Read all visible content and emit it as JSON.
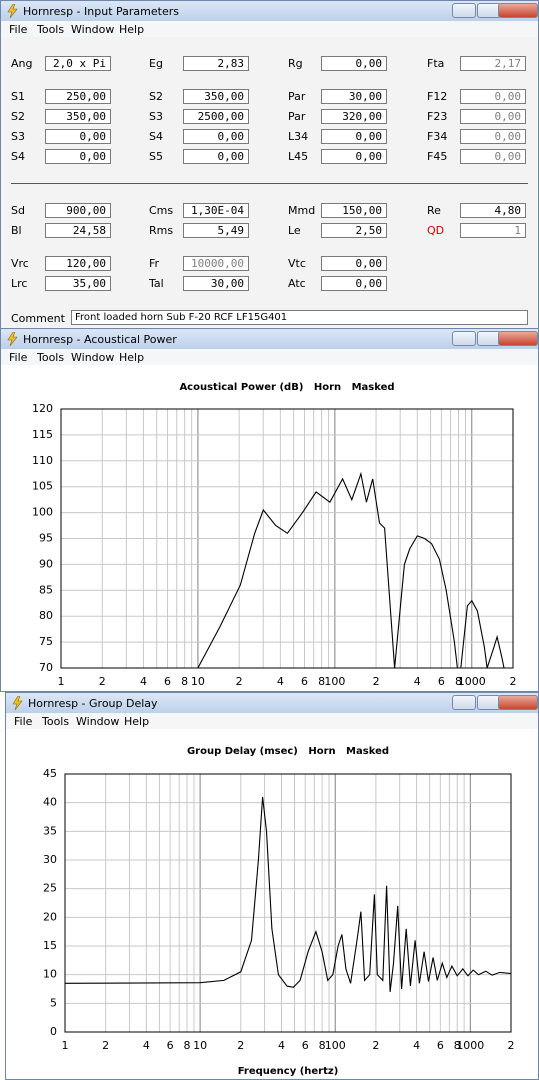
{
  "windows": [
    {
      "title": "Hornresp - Input Parameters",
      "menu": [
        "File",
        "Tools",
        "Window",
        "Help"
      ]
    },
    {
      "title": "Hornresp - Acoustical Power",
      "menu": [
        "File",
        "Tools",
        "Window",
        "Help"
      ]
    },
    {
      "title": "Hornresp - Group Delay",
      "menu": [
        "File",
        "Tools",
        "Window",
        "Help"
      ]
    }
  ],
  "input_parameters": {
    "rows": [
      [
        {
          "label": "Ang",
          "value": "2,0 x Pi"
        },
        {
          "label": "Eg",
          "value": "2,83"
        },
        {
          "label": "Rg",
          "value": "0,00"
        },
        {
          "label": "Fta",
          "value": "2,17"
        }
      ],
      [
        {
          "label": "S1",
          "value": "250,00"
        },
        {
          "label": "S2",
          "value": "350,00"
        },
        {
          "label": "Par",
          "value": "30,00"
        },
        {
          "label": "F12",
          "value": "0,00"
        }
      ],
      [
        {
          "label": "S2",
          "value": "350,00"
        },
        {
          "label": "S3",
          "value": "2500,00"
        },
        {
          "label": "Par",
          "value": "320,00"
        },
        {
          "label": "F23",
          "value": "0,00"
        }
      ],
      [
        {
          "label": "S3",
          "value": "0,00"
        },
        {
          "label": "S4",
          "value": "0,00"
        },
        {
          "label": "L34",
          "value": "0,00"
        },
        {
          "label": "F34",
          "value": "0,00"
        }
      ],
      [
        {
          "label": "S4",
          "value": "0,00"
        },
        {
          "label": "S5",
          "value": "0,00"
        },
        {
          "label": "L45",
          "value": "0,00"
        },
        {
          "label": "F45",
          "value": "0,00"
        }
      ],
      [
        {
          "label": "Sd",
          "value": "900,00"
        },
        {
          "label": "Cms",
          "value": "1,30E-04"
        },
        {
          "label": "Mmd",
          "value": "150,00"
        },
        {
          "label": "Re",
          "value": "4,80"
        }
      ],
      [
        {
          "label": "Bl",
          "value": "24,58"
        },
        {
          "label": "Rms",
          "value": "5,49"
        },
        {
          "label": "Le",
          "value": "2,50"
        },
        {
          "label": "QD",
          "value": "1"
        }
      ],
      [
        {
          "label": "Vrc",
          "value": "120,00"
        },
        {
          "label": "Fr",
          "value": "10000,00"
        },
        {
          "label": "Vtc",
          "value": "0,00"
        }
      ],
      [
        {
          "label": "Lrc",
          "value": "35,00"
        },
        {
          "label": "Tal",
          "value": "30,00"
        },
        {
          "label": "Atc",
          "value": "0,00"
        }
      ]
    ],
    "comment_label": "Comment",
    "comment": "Front loaded horn Sub F-20  RCF LF15G401"
  },
  "chart_data": [
    {
      "type": "line",
      "title": "Acoustical Power (dB)   Horn   Masked",
      "log_x": true,
      "grid": true,
      "color": "#000000",
      "x": [
        10,
        14.5,
        20.4,
        26,
        30,
        37,
        45,
        58,
        73,
        92,
        114,
        133,
        155,
        170,
        189,
        212,
        231,
        273,
        322,
        352,
        400,
        452,
        509,
        580,
        650,
        746,
        785,
        832,
        929,
        1000,
        1099,
        1237,
        1293,
        1450,
        1530,
        1660,
        1720
      ],
      "values": [
        70,
        78,
        86,
        96,
        100.5,
        97.5,
        96,
        100,
        104,
        102,
        106.5,
        102.5,
        107.5,
        102,
        106.5,
        98,
        97,
        70,
        90,
        93,
        95.5,
        95,
        94,
        91,
        85,
        75,
        70,
        70,
        82,
        83,
        81,
        74,
        70,
        74,
        76,
        72,
        70
      ],
      "xlim": [
        1,
        2000
      ],
      "ylim": [
        70,
        120
      ],
      "yticks": [
        70,
        75,
        80,
        85,
        90,
        95,
        100,
        105,
        110,
        115,
        120
      ],
      "xticks": [
        1,
        2,
        4,
        6,
        8,
        10,
        {
          "value": 20,
          "label": "2"
        },
        {
          "value": 40,
          "label": "4"
        },
        {
          "value": 60,
          "label": "6"
        },
        {
          "value": 80,
          "label": "8"
        },
        100,
        {
          "value": 200,
          "label": "2"
        },
        {
          "value": 400,
          "label": "4"
        },
        {
          "value": 600,
          "label": "6"
        },
        {
          "value": 800,
          "label": "8"
        },
        1000,
        {
          "value": 2000,
          "label": "2"
        }
      ],
      "xminor": [
        3,
        5,
        7,
        9,
        30,
        50,
        70,
        90,
        300,
        500,
        700,
        900
      ]
    },
    {
      "type": "line",
      "title": "Group Delay (msec)   Horn   Masked",
      "xlabel": "Frequency (hertz)",
      "log_x": true,
      "grid": true,
      "color": "#000000",
      "x": [
        1,
        10,
        15,
        20,
        24,
        27,
        29,
        31,
        34,
        38,
        44,
        49,
        55,
        63,
        72,
        80,
        88,
        96,
        105,
        112,
        120,
        130,
        145,
        155,
        165,
        180,
        195,
        205,
        225,
        240,
        255,
        270,
        290,
        310,
        335,
        360,
        390,
        420,
        455,
        490,
        530,
        570,
        620,
        670,
        730,
        800,
        880,
        960,
        1050,
        1150,
        1300,
        1450,
        1650,
        2000
      ],
      "values": [
        8.5,
        8.6,
        9,
        10.5,
        16,
        30,
        41,
        35,
        18,
        10,
        8,
        7.8,
        9,
        14,
        17.5,
        14,
        9,
        10,
        15,
        17,
        11,
        8.5,
        16,
        21,
        9,
        10,
        24,
        10,
        9,
        25.5,
        7,
        12,
        22,
        7.5,
        18,
        8,
        16,
        8.5,
        14,
        8.8,
        13,
        9,
        12,
        9.5,
        11.5,
        9.8,
        11,
        9.8,
        10.8,
        10,
        10.6,
        9.9,
        10.4,
        10.2
      ],
      "xlim": [
        1,
        2000
      ],
      "ylim": [
        0,
        45
      ],
      "yticks": [
        0,
        5,
        10,
        15,
        20,
        25,
        30,
        35,
        40,
        45
      ],
      "xticks": [
        1,
        2,
        4,
        6,
        8,
        10,
        {
          "value": 20,
          "label": "2"
        },
        {
          "value": 40,
          "label": "4"
        },
        {
          "value": 60,
          "label": "6"
        },
        {
          "value": 80,
          "label": "8"
        },
        100,
        {
          "value": 200,
          "label": "2"
        },
        {
          "value": 400,
          "label": "4"
        },
        {
          "value": 600,
          "label": "6"
        },
        {
          "value": 800,
          "label": "8"
        },
        1000,
        {
          "value": 2000,
          "label": "2"
        }
      ],
      "xminor": [
        3,
        5,
        7,
        9,
        30,
        50,
        70,
        90,
        300,
        500,
        700,
        900
      ]
    }
  ]
}
